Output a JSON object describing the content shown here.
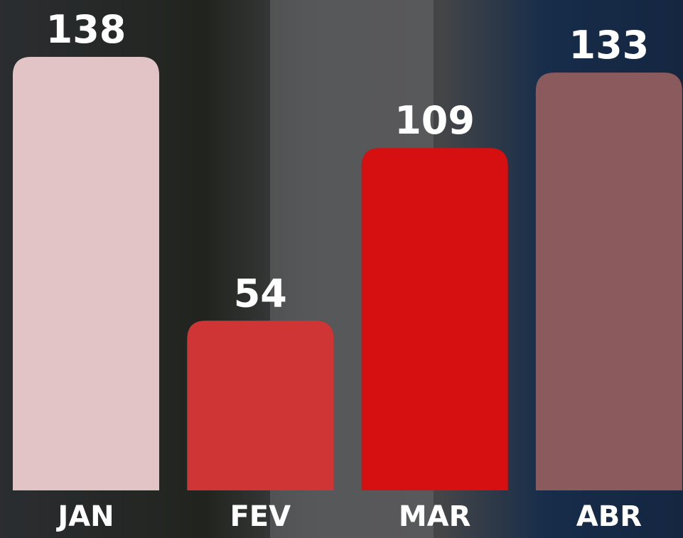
{
  "chart_data": {
    "type": "bar",
    "categories": [
      "JAN",
      "FEV",
      "MAR",
      "ABR"
    ],
    "values": [
      138,
      54,
      109,
      133
    ],
    "colors": [
      "#e2c4c6",
      "#cf3535",
      "#d61010",
      "#8b5a5c"
    ]
  }
}
